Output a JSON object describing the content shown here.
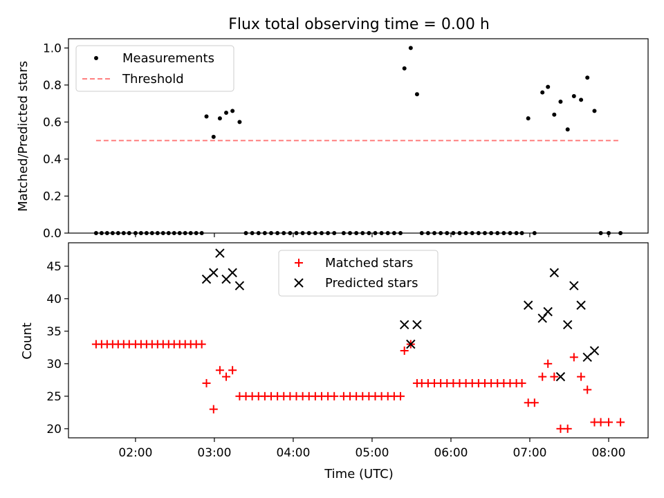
{
  "chart_data": {
    "title": "Flux total observing time = 0.00 h",
    "xlabel": "Time (UTC)",
    "xlim_hours": [
      1.15,
      8.5
    ],
    "x_ticks": [
      {
        "value": 2,
        "label": "02:00"
      },
      {
        "value": 3,
        "label": "03:00"
      },
      {
        "value": 4,
        "label": "04:00"
      },
      {
        "value": 5,
        "label": "05:00"
      },
      {
        "value": 6,
        "label": "06:00"
      },
      {
        "value": 7,
        "label": "07:00"
      },
      {
        "value": 8,
        "label": "08:00"
      }
    ],
    "panels": [
      {
        "type": "scatter",
        "ylabel": "Matched/Predicted stars",
        "ylim": [
          0,
          1.05
        ],
        "y_ticks": [
          "0.0",
          "0.2",
          "0.4",
          "0.6",
          "0.8",
          "1.0"
        ],
        "y_tick_values": [
          0,
          0.2,
          0.4,
          0.6,
          0.8,
          1.0
        ],
        "legend": {
          "position": "upper-left",
          "entries": [
            "Measurements",
            "Threshold"
          ]
        },
        "series": [
          {
            "name": "Measurements",
            "marker": "dot",
            "color": "#000000",
            "x": [
              1.5,
              1.57,
              1.64,
              1.71,
              1.78,
              1.85,
              1.92,
              2.0,
              2.07,
              2.14,
              2.21,
              2.28,
              2.35,
              2.42,
              2.49,
              2.56,
              2.63,
              2.7,
              2.77,
              2.84,
              2.9,
              2.99,
              3.07,
              3.15,
              3.23,
              3.32,
              3.4,
              3.48,
              3.56,
              3.64,
              3.72,
              3.8,
              3.88,
              3.96,
              4.04,
              4.12,
              4.2,
              4.28,
              4.36,
              4.44,
              4.52,
              4.64,
              4.72,
              4.8,
              4.88,
              4.96,
              5.04,
              5.12,
              5.2,
              5.28,
              5.36,
              5.41,
              5.49,
              5.57,
              5.63,
              5.71,
              5.79,
              5.87,
              5.95,
              6.03,
              6.11,
              6.19,
              6.27,
              6.35,
              6.43,
              6.51,
              6.59,
              6.67,
              6.75,
              6.83,
              6.9,
              6.98,
              7.06,
              7.16,
              7.23,
              7.31,
              7.39,
              7.48,
              7.56,
              7.65,
              7.73,
              7.82,
              7.9,
              8.0,
              8.15
            ],
            "y": [
              0,
              0,
              0,
              0,
              0,
              0,
              0,
              0,
              0,
              0,
              0,
              0,
              0,
              0,
              0,
              0,
              0,
              0,
              0,
              0,
              0.63,
              0.52,
              0.62,
              0.65,
              0.66,
              0.6,
              0,
              0,
              0,
              0,
              0,
              0,
              0,
              0,
              0,
              0,
              0,
              0,
              0,
              0,
              0,
              0,
              0,
              0,
              0,
              0,
              0,
              0,
              0,
              0,
              0,
              0.89,
              1.0,
              0.75,
              0,
              0,
              0,
              0,
              0,
              0,
              0,
              0,
              0,
              0,
              0,
              0,
              0,
              0,
              0,
              0,
              0,
              0.62,
              0,
              0.76,
              0.79,
              0.64,
              0.71,
              0.56,
              0.74,
              0.72,
              0.84,
              0.66,
              0,
              0,
              0
            ]
          },
          {
            "name": "Threshold",
            "marker": "dashed-line",
            "color": "#ff7f7f",
            "x": [
              1.5,
              8.15
            ],
            "y": [
              0.5,
              0.5
            ]
          }
        ]
      },
      {
        "type": "scatter",
        "ylabel": "Count",
        "ylim": [
          18.6,
          48.6
        ],
        "y_ticks": [
          "20",
          "25",
          "30",
          "35",
          "40",
          "45"
        ],
        "y_tick_values": [
          20,
          25,
          30,
          35,
          40,
          45
        ],
        "legend": {
          "position": "upper-center",
          "entries": [
            "Matched stars",
            "Predicted stars"
          ]
        },
        "series": [
          {
            "name": "Matched stars",
            "marker": "plus",
            "color": "#ff0000",
            "x": [
              1.5,
              1.57,
              1.64,
              1.71,
              1.78,
              1.85,
              1.92,
              2.0,
              2.07,
              2.14,
              2.21,
              2.28,
              2.35,
              2.42,
              2.49,
              2.56,
              2.63,
              2.7,
              2.77,
              2.84,
              2.9,
              2.99,
              3.07,
              3.15,
              3.23,
              3.32,
              3.4,
              3.48,
              3.56,
              3.64,
              3.72,
              3.8,
              3.88,
              3.96,
              4.04,
              4.12,
              4.2,
              4.28,
              4.36,
              4.44,
              4.52,
              4.64,
              4.72,
              4.8,
              4.88,
              4.96,
              5.04,
              5.12,
              5.2,
              5.28,
              5.36,
              5.41,
              5.49,
              5.57,
              5.63,
              5.71,
              5.79,
              5.87,
              5.95,
              6.03,
              6.11,
              6.19,
              6.27,
              6.35,
              6.43,
              6.51,
              6.59,
              6.67,
              6.75,
              6.83,
              6.9,
              6.98,
              7.06,
              7.16,
              7.23,
              7.31,
              7.39,
              7.48,
              7.56,
              7.65,
              7.73,
              7.82,
              7.9,
              8.0,
              8.15
            ],
            "y": [
              33,
              33,
              33,
              33,
              33,
              33,
              33,
              33,
              33,
              33,
              33,
              33,
              33,
              33,
              33,
              33,
              33,
              33,
              33,
              33,
              27,
              23,
              29,
              28,
              29,
              25,
              25,
              25,
              25,
              25,
              25,
              25,
              25,
              25,
              25,
              25,
              25,
              25,
              25,
              25,
              25,
              25,
              25,
              25,
              25,
              25,
              25,
              25,
              25,
              25,
              25,
              32,
              33,
              27,
              27,
              27,
              27,
              27,
              27,
              27,
              27,
              27,
              27,
              27,
              27,
              27,
              27,
              27,
              27,
              27,
              27,
              24,
              24,
              28,
              30,
              28,
              20,
              20,
              31,
              28,
              26,
              21,
              21,
              21,
              21
            ]
          },
          {
            "name": "Predicted stars",
            "marker": "x",
            "color": "#000000",
            "x": [
              2.9,
              2.99,
              3.07,
              3.15,
              3.23,
              3.32,
              5.41,
              5.49,
              5.57,
              6.98,
              7.16,
              7.23,
              7.31,
              7.39,
              7.48,
              7.56,
              7.65,
              7.73,
              7.82
            ],
            "y": [
              43,
              44,
              47,
              43,
              44,
              42,
              36,
              33,
              36,
              39,
              37,
              38,
              44,
              28,
              36,
              42,
              39,
              31,
              32
            ]
          }
        ]
      }
    ]
  }
}
